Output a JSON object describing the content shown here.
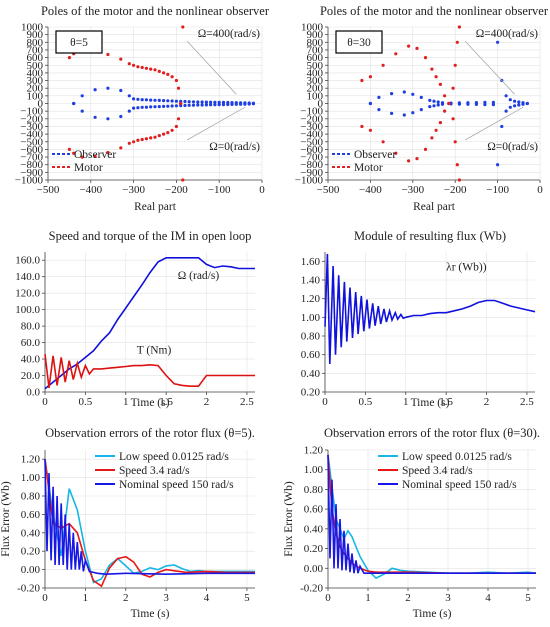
{
  "chart_data": [
    {
      "type": "scatter",
      "title": "Poles of the motor and the nonlinear observer",
      "xlabel": "Real part",
      "ylabel": "",
      "xlim": [
        -500,
        0
      ],
      "ylim": [
        -1000,
        1000
      ],
      "xticks": [
        "−500",
        "−400",
        "−300",
        "−200",
        "−100",
        "0"
      ],
      "yticks": [
        "1000",
        "900",
        "800",
        "700",
        "600",
        "500",
        "400",
        "300",
        "200",
        "100",
        "0",
        "−100",
        "−200",
        "−300",
        "−400",
        "−500",
        "−600",
        "−700",
        "−800",
        "−900",
        "−1000"
      ],
      "box_label": "θ=5",
      "annotations": [
        "Ω=400(rad/s)",
        "Ω=0(rad/s)"
      ],
      "legend": [
        "Observer",
        "Motor"
      ],
      "legend_position": "bottom-left",
      "colors": {
        "Observer": "#1f3fe0",
        "Motor": "#e01f1f"
      },
      "series": [
        {
          "name": "Observer",
          "x": [
            -440,
            -420,
            -390,
            -360,
            -330,
            -310,
            -300,
            -290,
            -280,
            -270,
            -260,
            -250,
            -240,
            -230,
            -220,
            -210,
            -200,
            -190,
            -180,
            -170,
            -160,
            -150,
            -140,
            -130,
            -120,
            -110,
            -100,
            -90,
            -80,
            -70,
            -60,
            -50,
            -40,
            -30,
            -20
          ],
          "y": [
            0,
            100,
            180,
            200,
            170,
            100,
            60,
            55,
            50,
            48,
            45,
            42,
            40,
            38,
            35,
            33,
            30,
            28,
            26,
            24,
            22,
            20,
            19,
            18,
            17,
            16,
            15,
            14,
            13,
            12,
            10,
            9,
            8,
            6,
            4
          ]
        },
        {
          "name": "Motor",
          "x": [
            -450,
            -440,
            -420,
            -390,
            -360,
            -330,
            -310,
            -300,
            -290,
            -280,
            -270,
            -260,
            -250,
            -240,
            -230,
            -220,
            -210,
            -200,
            -195,
            -190,
            -185
          ],
          "y": [
            600,
            650,
            700,
            690,
            640,
            580,
            520,
            500,
            480,
            470,
            460,
            450,
            440,
            420,
            400,
            380,
            350,
            300,
            200,
            0,
            -1000
          ]
        }
      ]
    },
    {
      "type": "scatter",
      "title": "Poles of the motor and the nonlinear observer",
      "xlabel": "Real part",
      "ylabel": "",
      "xlim": [
        -500,
        0
      ],
      "ylim": [
        -1000,
        1000
      ],
      "xticks": [
        "−500",
        "−400",
        "−300",
        "−200",
        "−100",
        "0"
      ],
      "yticks": [
        "1000",
        "900",
        "800",
        "700",
        "600",
        "500",
        "400",
        "300",
        "200",
        "100",
        "0",
        "−100",
        "−200",
        "−300",
        "−400",
        "−500",
        "−600",
        "−700",
        "−800",
        "−900",
        "−1000"
      ],
      "box_label": "θ=30",
      "annotations": [
        "Ω=400(rad/s)",
        "Ω=0(rad/s)"
      ],
      "legend": [
        "Observer",
        "Motor"
      ],
      "legend_position": "bottom-left",
      "colors": {
        "Observer": "#1f3fe0",
        "Motor": "#e01f1f"
      },
      "series": [
        {
          "name": "Observer",
          "x": [
            -400,
            -380,
            -350,
            -320,
            -300,
            -280,
            -260,
            -250,
            -240,
            -230,
            -210,
            -190,
            -170,
            -150,
            -130,
            -110,
            -100,
            -90,
            -80,
            -70,
            -60,
            -50,
            -40,
            -30
          ],
          "y": [
            0,
            80,
            130,
            150,
            120,
            80,
            40,
            30,
            20,
            10,
            5,
            8,
            10,
            12,
            14,
            15,
            800,
            300,
            100,
            50,
            30,
            20,
            10,
            0
          ]
        },
        {
          "name": "Motor",
          "x": [
            -420,
            -400,
            -370,
            -340,
            -310,
            -290,
            -270,
            -255,
            -245,
            -235,
            -225,
            -215,
            -205,
            -200,
            -195,
            -190
          ],
          "y": [
            300,
            350,
            500,
            650,
            750,
            720,
            600,
            450,
            350,
            250,
            100,
            0,
            -200,
            -500,
            -800,
            -1000
          ]
        }
      ]
    },
    {
      "type": "line",
      "title": "Speed and torque of the IM in open loop",
      "xlabel": "Time (s)",
      "ylabel": "",
      "xlim": [
        0,
        2.6
      ],
      "ylim": [
        0,
        170
      ],
      "xticks": [
        "0",
        "0.5",
        "1",
        "1.5",
        "2",
        "2.5"
      ],
      "yticks": [
        "0.0",
        "20.0",
        "40.0",
        "60.0",
        "80.0",
        "100.0",
        "120.0",
        "140.0",
        "160.0"
      ],
      "annotations": [
        "Ω (rad/s)",
        "T (Nm)"
      ],
      "colors": {
        "speed": "#1111dd",
        "torque": "#dd1111"
      },
      "series": [
        {
          "x": [
            0,
            0.1,
            0.2,
            0.3,
            0.4,
            0.5,
            0.6,
            0.7,
            0.8,
            0.9,
            1.0,
            1.1,
            1.2,
            1.3,
            1.4,
            1.5,
            1.6,
            1.7,
            1.8,
            1.9,
            2.0,
            2.1,
            2.2,
            2.3,
            2.4,
            2.5,
            2.6
          ],
          "y": [
            4,
            12,
            20,
            28,
            34,
            42,
            50,
            62,
            72,
            88,
            102,
            116,
            130,
            145,
            158,
            163,
            163,
            163,
            163,
            163,
            155,
            151,
            153,
            152,
            150,
            150,
            150
          ]
        },
        {
          "x": [
            0,
            0.05,
            0.1,
            0.15,
            0.2,
            0.25,
            0.3,
            0.35,
            0.4,
            0.45,
            0.5,
            0.55,
            0.6,
            0.7,
            0.8,
            0.9,
            1.0,
            1.1,
            1.2,
            1.3,
            1.4,
            1.5,
            1.6,
            1.7,
            1.8,
            1.9,
            2.0,
            2.1,
            2.2,
            2.3,
            2.4,
            2.5,
            2.6
          ],
          "y": [
            46,
            5,
            44,
            8,
            42,
            12,
            38,
            15,
            35,
            18,
            32,
            22,
            28,
            28,
            29,
            30,
            31,
            32,
            32,
            33,
            32,
            20,
            10,
            8,
            7,
            7,
            20,
            20,
            20,
            20,
            20,
            20,
            20
          ]
        }
      ]
    },
    {
      "type": "line",
      "title": "Module of resulting flux (Wb)",
      "xlabel": "Time (s)",
      "ylabel": "",
      "xlim": [
        0,
        2.6
      ],
      "ylim": [
        0.2,
        1.7
      ],
      "xticks": [
        "0",
        "0.5",
        "1",
        "1.5",
        "2",
        "2.5"
      ],
      "yticks": [
        "1.60",
        "1.40",
        "1.20",
        "1.00",
        "0.80",
        "0.60",
        "0.40",
        "0.20"
      ],
      "annotations": [
        "λr (Wb))"
      ],
      "colors": {
        "flux": "#1111dd"
      },
      "series": [
        {
          "x": [
            0,
            0.03,
            0.06,
            0.1,
            0.13,
            0.17,
            0.2,
            0.24,
            0.27,
            0.31,
            0.34,
            0.38,
            0.41,
            0.45,
            0.48,
            0.52,
            0.55,
            0.59,
            0.62,
            0.66,
            0.69,
            0.73,
            0.76,
            0.8,
            0.83,
            0.87,
            0.9,
            0.94,
            0.97,
            1.0,
            1.1,
            1.2,
            1.3,
            1.4,
            1.5,
            1.6,
            1.7,
            1.8,
            1.9,
            2.0,
            2.1,
            2.2,
            2.3,
            2.4,
            2.5,
            2.6
          ],
          "y": [
            0.9,
            1.68,
            0.5,
            1.55,
            0.6,
            1.45,
            0.68,
            1.38,
            0.74,
            1.32,
            0.78,
            1.27,
            0.82,
            1.23,
            0.85,
            1.19,
            0.88,
            1.15,
            0.91,
            1.12,
            0.93,
            1.09,
            0.95,
            1.07,
            0.97,
            1.05,
            0.98,
            1.03,
            0.99,
            1.0,
            1.02,
            1.02,
            1.04,
            1.05,
            1.05,
            1.07,
            1.09,
            1.12,
            1.16,
            1.18,
            1.18,
            1.15,
            1.12,
            1.1,
            1.08,
            1.06
          ]
        }
      ]
    },
    {
      "type": "line",
      "title": "Observation errors of the rotor flux (θ=5).",
      "xlabel": "Time (s)",
      "ylabel": "Flux Error (Wb)",
      "xlim": [
        0,
        5.2
      ],
      "ylim": [
        -0.2,
        1.3
      ],
      "xticks": [
        "0",
        "1",
        "2",
        "3",
        "4",
        "5"
      ],
      "yticks": [
        "1.20",
        "1.00",
        "0.80",
        "0.60",
        "0.40",
        "0.20",
        "0.00",
        "-0.20"
      ],
      "legend": [
        "Low speed 0.0125 rad/s",
        "Speed 3.4 rad/s",
        "Nominal speed 150 rad/s"
      ],
      "legend_position": "top-right",
      "colors": {
        "low": "#17b6e6",
        "mid": "#e61717",
        "nominal": "#1717e6"
      },
      "series": [
        {
          "name": "Low speed 0.0125 rad/s",
          "x": [
            0,
            0.2,
            0.4,
            0.6,
            0.8,
            1.0,
            1.2,
            1.4,
            1.6,
            1.8,
            2.0,
            2.2,
            2.4,
            2.6,
            2.8,
            3.0,
            3.2,
            3.4,
            3.6,
            3.8,
            4.0,
            4.5,
            5.0,
            5.2
          ],
          "y": [
            1.2,
            0.6,
            0.15,
            0.88,
            0.65,
            0.2,
            -0.14,
            -0.1,
            0.05,
            0.12,
            0.04,
            -0.04,
            -0.02,
            0.02,
            0.0,
            0.04,
            0.05,
            0.01,
            -0.02,
            -0.01,
            -0.02,
            -0.02,
            -0.02,
            -0.02
          ]
        },
        {
          "name": "Speed 3.4 rad/s",
          "x": [
            0,
            0.2,
            0.4,
            0.6,
            0.8,
            1.0,
            1.2,
            1.4,
            1.6,
            1.8,
            2.0,
            2.2,
            2.4,
            2.6,
            2.8,
            3.0,
            3.5,
            4.0,
            4.5,
            5.0,
            5.2
          ],
          "y": [
            1.2,
            0.5,
            0.45,
            0.5,
            0.4,
            0.1,
            -0.12,
            -0.18,
            0.02,
            0.12,
            0.14,
            0.08,
            -0.05,
            -0.08,
            -0.03,
            0.0,
            -0.03,
            -0.02,
            -0.03,
            -0.03,
            -0.03
          ]
        },
        {
          "name": "Nominal speed 150 rad/s",
          "x": [
            0,
            0.05,
            0.1,
            0.15,
            0.2,
            0.25,
            0.3,
            0.35,
            0.4,
            0.45,
            0.5,
            0.55,
            0.6,
            0.65,
            0.7,
            0.75,
            0.8,
            0.85,
            0.9,
            0.95,
            1.0,
            1.1,
            1.2,
            1.3,
            1.5,
            2.0,
            3.0,
            4.0,
            5.0,
            5.2
          ],
          "y": [
            1.2,
            0.2,
            1.05,
            0.1,
            0.9,
            0.05,
            0.8,
            0.05,
            0.72,
            0.05,
            0.6,
            0.0,
            0.5,
            0.0,
            0.4,
            0.0,
            0.3,
            0.0,
            0.2,
            -0.02,
            0.1,
            -0.02,
            -0.03,
            -0.04,
            -0.05,
            -0.04,
            -0.05,
            -0.04,
            -0.04,
            -0.04
          ]
        }
      ]
    },
    {
      "type": "line",
      "title": "Observation errors of the rotor flux (θ=30).",
      "xlabel": "Time (s)",
      "ylabel": "Flux Error (Wb)",
      "xlim": [
        0,
        5.2
      ],
      "ylim": [
        -0.2,
        1.2
      ],
      "xticks": [
        "0",
        "1",
        "2",
        "3",
        "4",
        "5"
      ],
      "yticks": [
        "1.20",
        "1.00",
        "0.80",
        "0.60",
        "0.40",
        "0.20",
        "0.00",
        "-0.20"
      ],
      "legend": [
        "Low speed 0.0125 rad/s",
        "Speed 3.4 rad/s",
        "Nominal speed 150 rad/s"
      ],
      "legend_position": "top-right",
      "colors": {
        "low": "#17b6e6",
        "mid": "#e61717",
        "nominal": "#1717e6"
      },
      "series": [
        {
          "name": "Low speed 0.0125 rad/s",
          "x": [
            0,
            0.2,
            0.4,
            0.5,
            0.6,
            0.8,
            1.0,
            1.2,
            1.4,
            1.6,
            1.8,
            2.0,
            2.5,
            3.0,
            3.5,
            4.0,
            4.5,
            5.0,
            5.2
          ],
          "y": [
            1.15,
            0.5,
            0.3,
            0.38,
            0.32,
            0.12,
            -0.02,
            -0.1,
            -0.06,
            0.0,
            -0.02,
            -0.03,
            -0.04,
            -0.05,
            -0.05,
            -0.04,
            -0.05,
            -0.04,
            -0.05
          ]
        },
        {
          "name": "Speed 3.4 rad/s",
          "x": [
            0,
            0.1,
            0.2,
            0.3,
            0.4,
            0.5,
            0.6,
            0.8,
            1.0,
            1.2,
            1.5,
            2.0,
            3.0,
            4.0,
            5.0,
            5.2
          ],
          "y": [
            1.15,
            0.6,
            0.35,
            0.22,
            0.15,
            0.1,
            0.05,
            0.0,
            -0.03,
            -0.04,
            -0.04,
            -0.04,
            -0.05,
            -0.05,
            -0.05,
            -0.05
          ]
        },
        {
          "name": "Nominal speed 150 rad/s",
          "x": [
            0,
            0.05,
            0.1,
            0.15,
            0.2,
            0.25,
            0.3,
            0.35,
            0.4,
            0.45,
            0.5,
            0.55,
            0.6,
            0.65,
            0.7,
            0.75,
            0.8,
            0.9,
            1.0,
            1.2,
            1.5,
            2.0,
            3.0,
            4.0,
            5.0,
            5.2
          ],
          "y": [
            1.15,
            0.1,
            0.9,
            0.0,
            0.65,
            0.0,
            0.5,
            -0.02,
            0.38,
            -0.02,
            0.25,
            -0.04,
            0.15,
            -0.05,
            0.08,
            -0.05,
            0.02,
            -0.05,
            -0.05,
            -0.05,
            -0.05,
            -0.05,
            -0.05,
            -0.05,
            -0.05,
            -0.05
          ]
        }
      ]
    }
  ]
}
